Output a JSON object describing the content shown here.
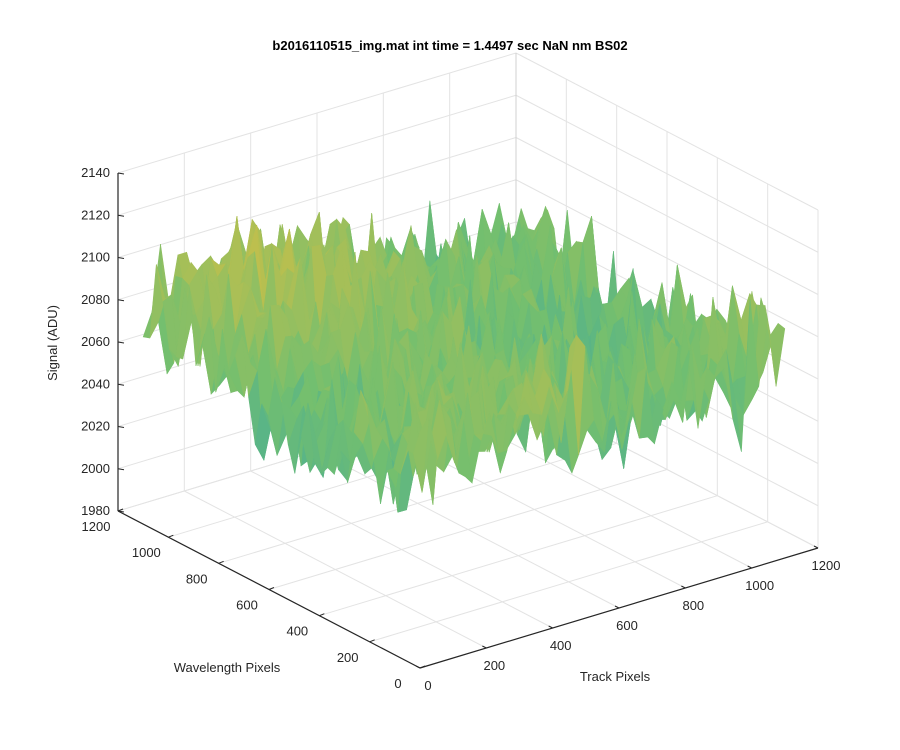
{
  "chart_data": {
    "type": "surface",
    "title": "b2016110515_img.mat int time = 1.4497 sec  NaN nm BS02",
    "xlabel": "Track Pixels",
    "ylabel": "Wavelength Pixels",
    "zlabel": "Signal (ADU)",
    "xlim": [
      0,
      1200
    ],
    "ylim": [
      0,
      1200
    ],
    "zlim": [
      1980,
      2140
    ],
    "x_ticks": [
      "0",
      "200",
      "400",
      "600",
      "800",
      "1000",
      "1200"
    ],
    "y_ticks": [
      "0",
      "200",
      "400",
      "600",
      "800",
      "1000",
      "1200"
    ],
    "z_ticks": [
      "1980",
      "2000",
      "2020",
      "2040",
      "2060",
      "2080",
      "2100",
      "2120",
      "2140"
    ],
    "grid": true,
    "colormap": "parula",
    "surface": {
      "x_range": [
        0,
        1100
      ],
      "y_range": [
        0,
        1100
      ],
      "mean_signal": 2070,
      "noise_amplitude": 25,
      "typical_range": [
        2000,
        2135
      ]
    },
    "colors": {
      "low": "#1196c9",
      "mid": "#73bf6f",
      "high": "#e8bf3a",
      "peak": "#f2cf3b",
      "axis": "#262626",
      "grid": "#e3e3e3"
    }
  }
}
